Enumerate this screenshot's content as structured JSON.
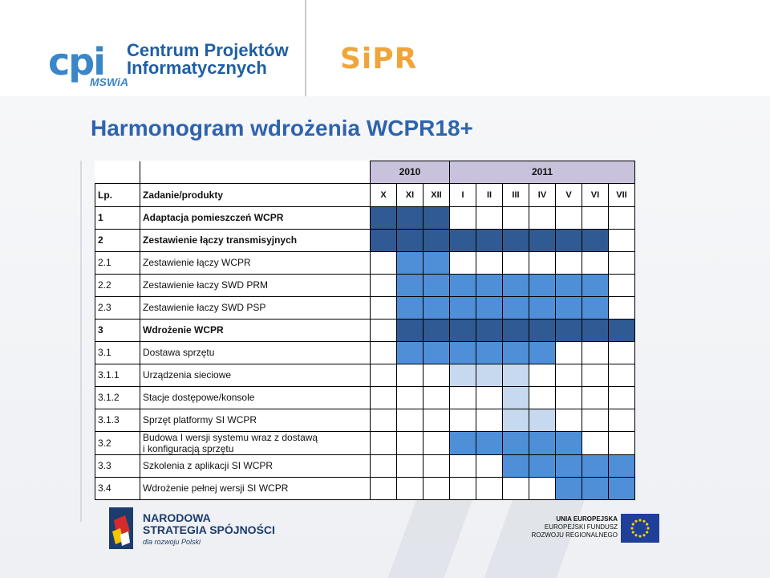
{
  "logos": {
    "cpi_mark": "cpi",
    "cpi_line1": "Centrum Projektów",
    "cpi_line2": "Informatycznych",
    "cpi_sub": "MSWiA",
    "sipr": "SiPR",
    "ns_line1": "NARODOWA",
    "ns_line2": "STRATEGIA SPÓJNOŚCI",
    "ns_line3": "dla rozwoju Polski",
    "eu_line1": "UNIA EUROPEJSKA",
    "eu_line2": "EUROPEJSKI FUNDUSZ",
    "eu_line3": "ROZWOJU REGIONALNEGO"
  },
  "title": "Harmonogram wdrożenia WCPR18+",
  "table": {
    "years": [
      "2010",
      "2011"
    ],
    "header": {
      "lp": "Lp.",
      "task": "Zadanie/produkty"
    },
    "months": [
      "X",
      "XI",
      "XII",
      "I",
      "II",
      "III",
      "IV",
      "V",
      "VI",
      "VII"
    ],
    "rows": [
      {
        "lp": "1",
        "task": "Adaptacja pomieszczeń WCPR",
        "bold": true,
        "cells": [
          1,
          1,
          1,
          0,
          0,
          0,
          0,
          0,
          0,
          0
        ]
      },
      {
        "lp": "2",
        "task": "Zestawienie łączy transmisyjnych",
        "bold": true,
        "cells": [
          1,
          1,
          1,
          1,
          1,
          1,
          1,
          1,
          1,
          0
        ]
      },
      {
        "lp": "2.1",
        "task": "Zestawienie łączy WCPR",
        "bold": false,
        "cells": [
          0,
          2,
          2,
          0,
          0,
          0,
          0,
          0,
          0,
          0
        ]
      },
      {
        "lp": "2.2",
        "task": "Zestawienie łaczy SWD PRM",
        "bold": false,
        "cells": [
          0,
          2,
          2,
          2,
          2,
          2,
          2,
          2,
          2,
          0
        ]
      },
      {
        "lp": "2.3",
        "task": "Zestawienie łaczy SWD PSP",
        "bold": false,
        "cells": [
          0,
          2,
          2,
          2,
          2,
          2,
          2,
          2,
          2,
          0
        ]
      },
      {
        "lp": "3",
        "task": "Wdrożenie WCPR",
        "bold": true,
        "cells": [
          0,
          1,
          1,
          1,
          1,
          1,
          1,
          1,
          1,
          1
        ]
      },
      {
        "lp": "3.1",
        "task": "Dostawa sprzętu",
        "bold": false,
        "cells": [
          0,
          2,
          2,
          2,
          2,
          2,
          2,
          0,
          0,
          0
        ]
      },
      {
        "lp": "3.1.1",
        "task": "Urządzenia sieciowe",
        "bold": false,
        "cells": [
          0,
          0,
          0,
          3,
          3,
          3,
          0,
          0,
          0,
          0
        ]
      },
      {
        "lp": "3.1.2",
        "task": "Stacje dostępowe/konsole",
        "bold": false,
        "cells": [
          0,
          0,
          0,
          0,
          0,
          3,
          0,
          0,
          0,
          0
        ]
      },
      {
        "lp": "3.1.3",
        "task": "Sprzęt platformy SI WCPR",
        "bold": false,
        "cells": [
          0,
          0,
          0,
          0,
          0,
          3,
          3,
          0,
          0,
          0
        ]
      },
      {
        "lp": "3.2",
        "task": "Budowa I wersji systemu wraz z dostawą i konfiguracją sprzętu",
        "task_line1": "Budowa I wersji systemu wraz z dostawą",
        "task_line2": "i konfiguracją sprzętu",
        "bold": false,
        "cells": [
          0,
          0,
          0,
          2,
          2,
          2,
          2,
          2,
          0,
          0
        ]
      },
      {
        "lp": "3.3",
        "task": "Szkolenia z aplikacji SI WCPR",
        "bold": false,
        "cells": [
          0,
          0,
          0,
          0,
          0,
          2,
          2,
          2,
          2,
          2
        ]
      },
      {
        "lp": "3.4",
        "task": "Wdrożenie pełnej wersji SI WCPR",
        "bold": false,
        "cells": [
          0,
          0,
          0,
          0,
          0,
          0,
          0,
          2,
          2,
          2
        ]
      }
    ]
  },
  "colors": {
    "title": "#2f63ad",
    "main_task_bar": "#2f5a93",
    "subtask_bar": "#4e8fd8",
    "light_subtask_bar": "#c7d9ef",
    "year_header": "#c8c2dc"
  }
}
